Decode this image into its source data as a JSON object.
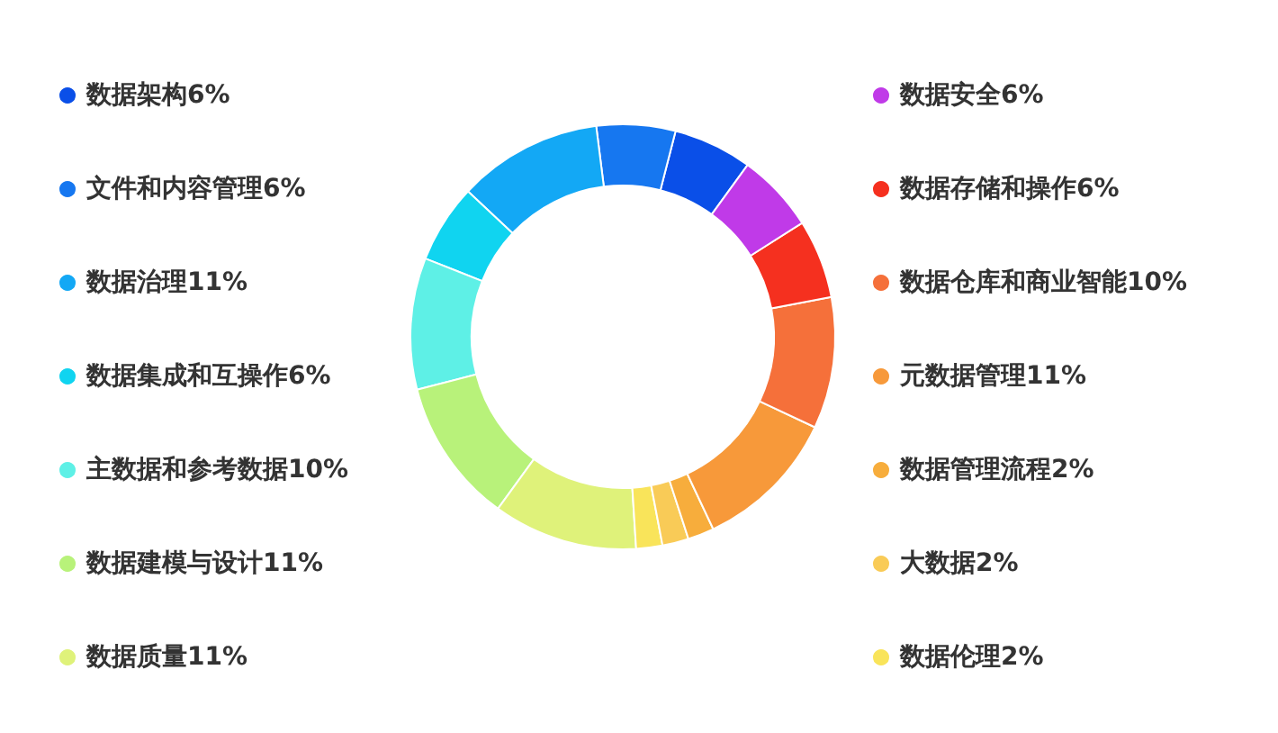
{
  "chart_data": {
    "type": "donut",
    "categories": [
      "数据架构6%",
      "文件和内容管理6%",
      "数据治理11%",
      "数据集成和互操作6%",
      "主数据和参考数据10%",
      "数据建模与设计11%",
      "数据质量11%",
      "数据伦理2%",
      "大数据2%",
      "数据管理流程2%",
      "元数据管理11%",
      "数据仓库和商业智能10%",
      "数据存储和操作6%",
      "数据安全6%"
    ],
    "values": [
      6,
      6,
      11,
      6,
      10,
      11,
      11,
      2,
      2,
      2,
      11,
      10,
      6,
      6
    ],
    "colors": [
      "#0a4fe8",
      "#1677f0",
      "#13a8f5",
      "#10d4f0",
      "#5ef0e6",
      "#b8f27a",
      "#dff27a",
      "#f9e45a",
      "#f9cb57",
      "#f7ad3c",
      "#f7993a",
      "#f5703a",
      "#f5301f",
      "#c03ae8"
    ],
    "legend": "left"
  }
}
